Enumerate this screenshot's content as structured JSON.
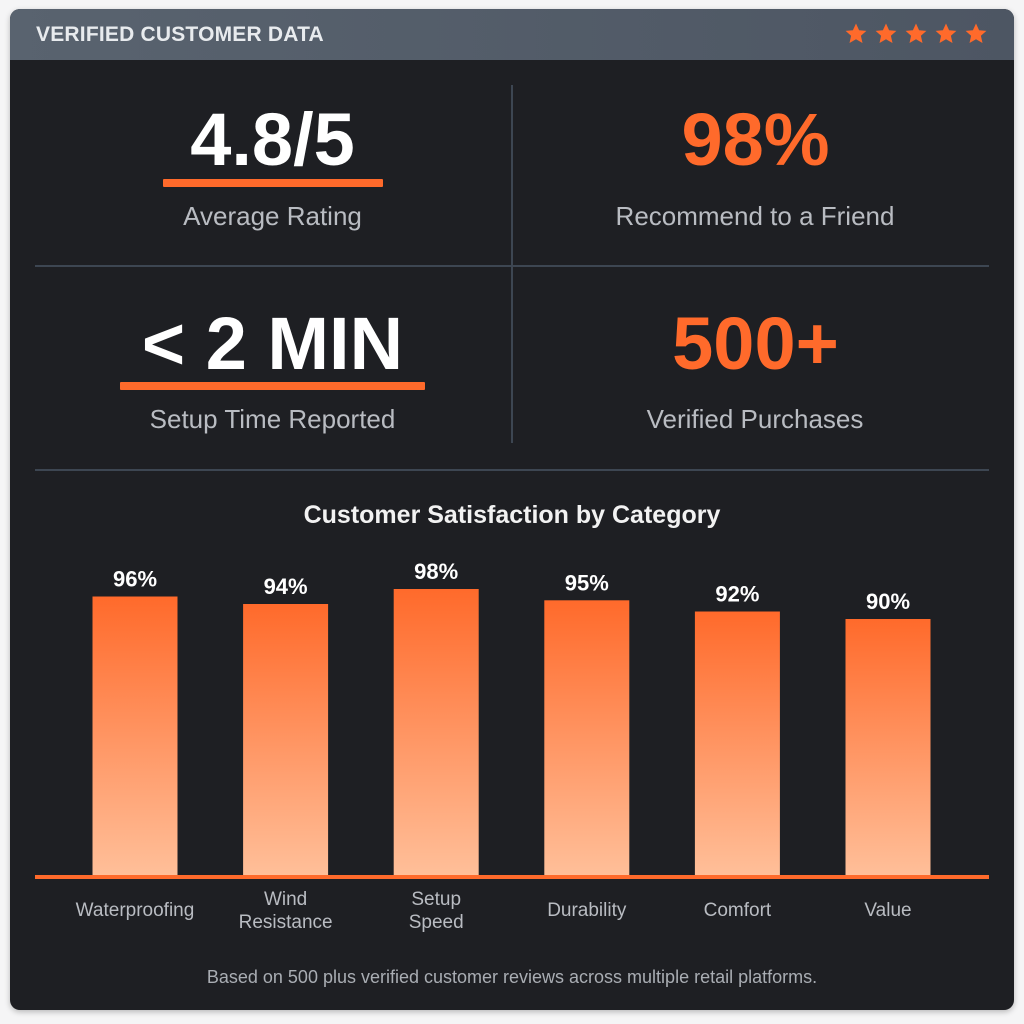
{
  "header": {
    "title": "VERIFIED CUSTOMER DATA",
    "stars": [
      "star-icon",
      "star-icon",
      "star-icon",
      "star-icon",
      "star-icon"
    ],
    "star_color": "#ff6a2b"
  },
  "stats": {
    "average_rating": {
      "value": "4.8/5",
      "label": "Average Rating"
    },
    "recommend": {
      "value": "98%",
      "label": "Recommend to a Friend"
    },
    "setup_time": {
      "value": "< 2 MIN",
      "label": "Setup Time Reported"
    },
    "purchases": {
      "value": "500+",
      "label": "Verified Purchases"
    }
  },
  "colors": {
    "accent": "#ff6a2b",
    "bar_top": "#ff6a2b",
    "bar_bottom": "#ffbf99",
    "background": "#1e1f23",
    "header": "#56606c"
  },
  "chart_data": {
    "type": "bar",
    "title": "Customer Satisfaction by Category",
    "categories": [
      [
        "Waterproofing"
      ],
      [
        "Wind",
        "Resistance"
      ],
      [
        "Setup",
        "Speed"
      ],
      [
        "Durability"
      ],
      [
        "Comfort"
      ],
      [
        "Value"
      ]
    ],
    "values": [
      96,
      94,
      98,
      95,
      92,
      90
    ],
    "data_labels": [
      "96%",
      "94%",
      "98%",
      "95%",
      "92%",
      "90%"
    ],
    "unit": "%",
    "ylim": [
      0,
      100
    ],
    "grid": false,
    "legend": "none"
  },
  "footnote": "Based on 500 plus verified customer reviews across multiple retail platforms."
}
